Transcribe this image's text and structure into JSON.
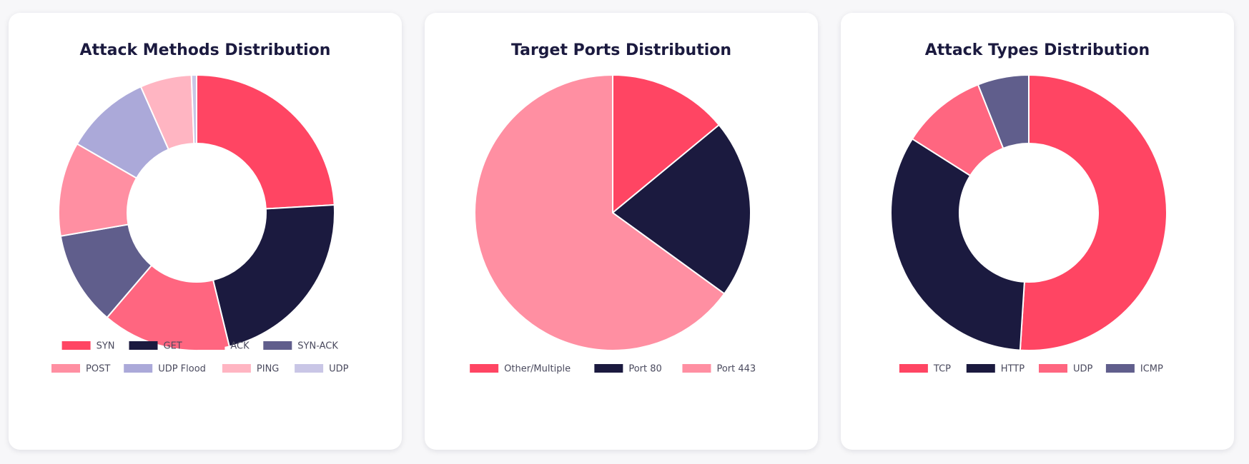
{
  "chart_data": [
    {
      "type": "pie",
      "donut": true,
      "title": "Attack Methods Distribution",
      "legend": "bottom",
      "series": [
        {
          "name": "SYN",
          "value": 24,
          "color": "#ff4563"
        },
        {
          "name": "GET",
          "value": 22,
          "color": "#1b1a3f"
        },
        {
          "name": "ACK",
          "value": 15,
          "color": "#ff6680"
        },
        {
          "name": "SYN-ACK",
          "value": 11,
          "color": "#605e8c"
        },
        {
          "name": "POST",
          "value": 11,
          "color": "#ff8fa2"
        },
        {
          "name": "UDP Flood",
          "value": 10,
          "color": "#aba9d9"
        },
        {
          "name": "PING",
          "value": 6,
          "color": "#ffb5c2"
        },
        {
          "name": "UDP",
          "value": 0.6,
          "color": "#c9c6e6"
        }
      ]
    },
    {
      "type": "pie",
      "donut": false,
      "title": "Target Ports Distribution",
      "legend": "bottom",
      "series": [
        {
          "name": "Other/Multiple",
          "value": 14,
          "color": "#ff4563"
        },
        {
          "name": "Port 80",
          "value": 21,
          "color": "#1b1a3f"
        },
        {
          "name": "Port 443",
          "value": 65,
          "color": "#ff8fa2"
        }
      ]
    },
    {
      "type": "pie",
      "donut": true,
      "title": "Attack Types Distribution",
      "legend": "bottom",
      "series": [
        {
          "name": "TCP",
          "value": 51,
          "color": "#ff4563"
        },
        {
          "name": "HTTP",
          "value": 33,
          "color": "#1b1a3f"
        },
        {
          "name": "UDP",
          "value": 10,
          "color": "#ff6680"
        },
        {
          "name": "ICMP",
          "value": 6,
          "color": "#605e8c"
        }
      ]
    }
  ]
}
